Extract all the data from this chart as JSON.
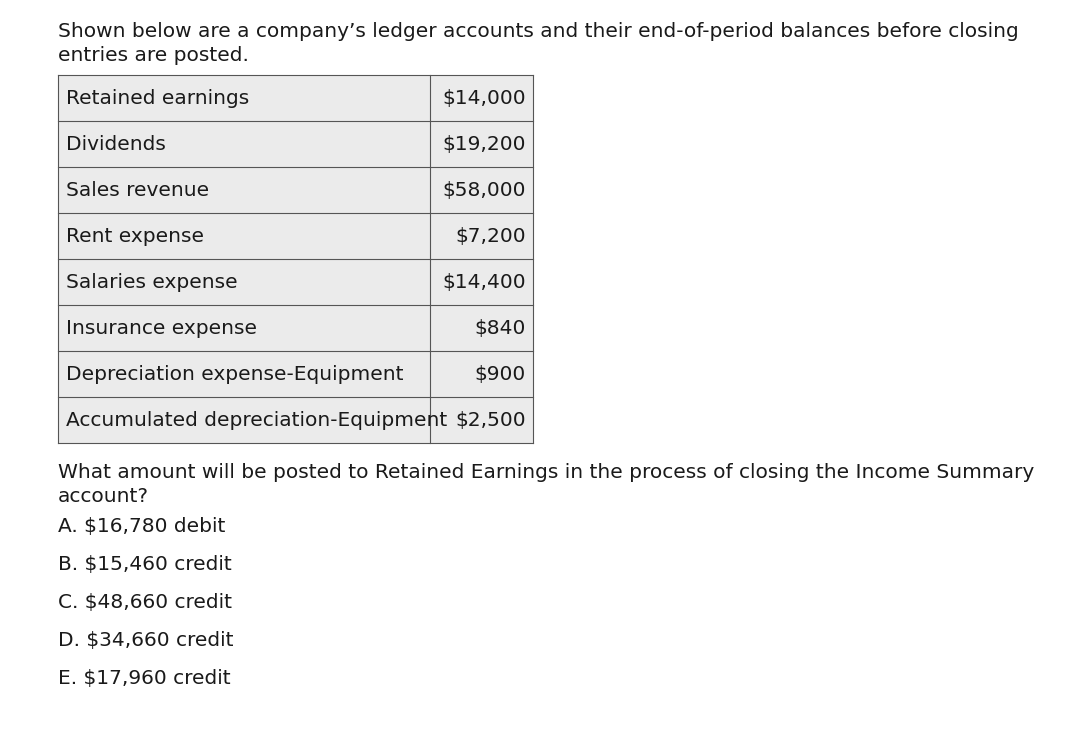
{
  "intro_text_line1": "Shown below are a company’s ledger accounts and their end-of-period balances before closing",
  "intro_text_line2": "entries are posted.",
  "table_rows": [
    [
      "Retained earnings",
      "$14,000"
    ],
    [
      "Dividends",
      "$19,200"
    ],
    [
      "Sales revenue",
      "$58,000"
    ],
    [
      "Rent expense",
      "$7,200"
    ],
    [
      "Salaries expense",
      "$14,400"
    ],
    [
      "Insurance expense",
      "$840"
    ],
    [
      "Depreciation expense-Equipment",
      "$900"
    ],
    [
      "Accumulated depreciation-Equipment",
      "$2,500"
    ]
  ],
  "question_line1": "What amount will be posted to Retained Earnings in the process of closing the Income Summary",
  "question_line2": "account?",
  "options": [
    "A. $16,780 debit",
    "B. $15,460 credit",
    "C. $48,660 credit",
    "D. $34,660 credit",
    "E. $17,960 credit"
  ],
  "bg_color": "#ffffff",
  "text_color": "#1a1a1a",
  "table_border_color": "#555555",
  "table_bg_color": "#ebebeb",
  "font_size": 14.5
}
